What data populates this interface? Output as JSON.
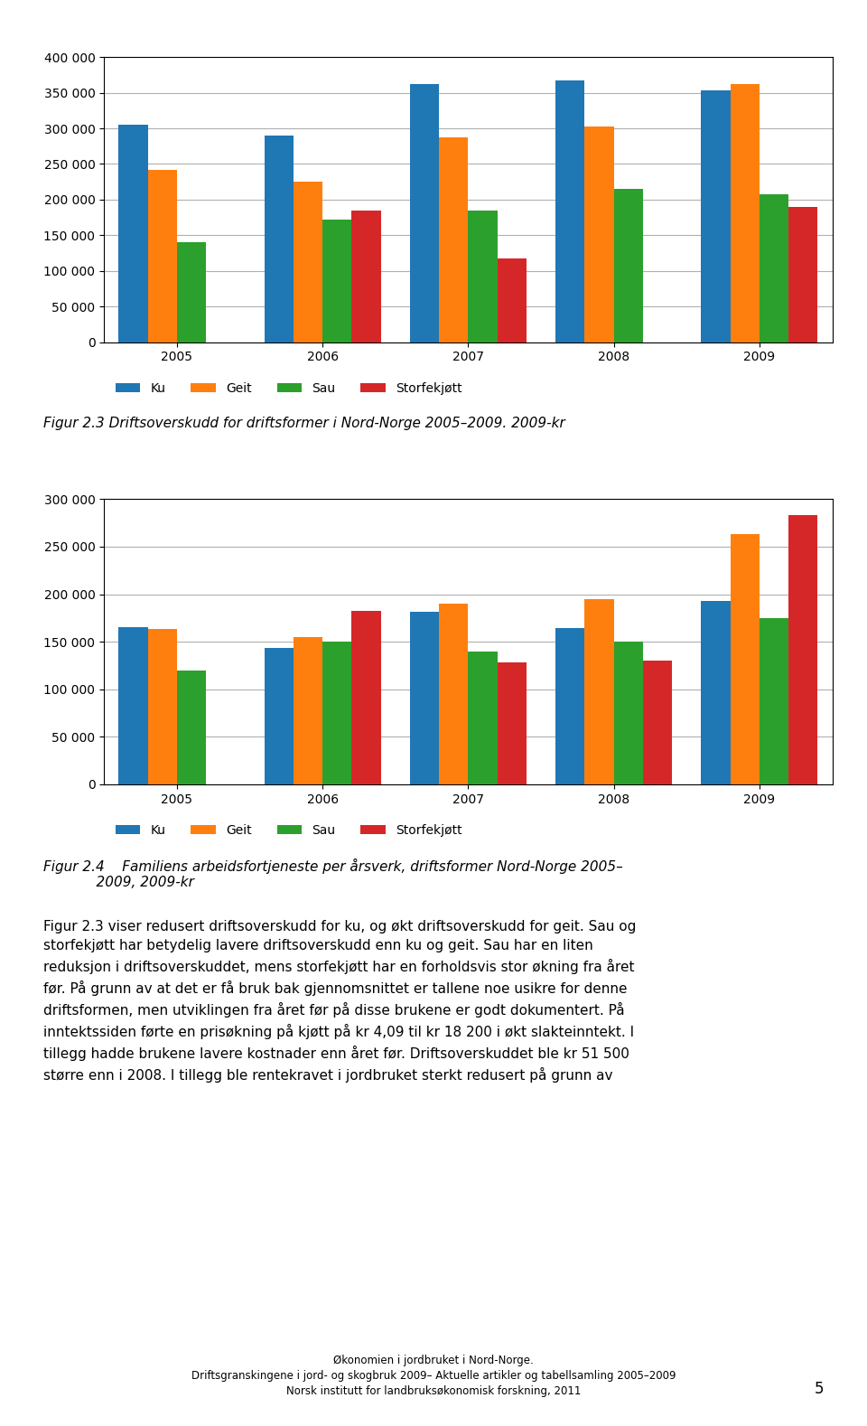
{
  "chart_data": [
    {
      "type": "bar",
      "title": "Figur 2.3 Driftsoverskudd for driftsformer i Nord-Norge 2005–2009. 2009-kr",
      "categories": [
        "2005",
        "2006",
        "2007",
        "2008",
        "2009"
      ],
      "series": [
        {
          "name": "Ku",
          "values": [
            305000,
            290000,
            362000,
            367000,
            353000
          ]
        },
        {
          "name": "Geit",
          "values": [
            242000,
            225000,
            287000,
            302000,
            362000
          ]
        },
        {
          "name": "Sau",
          "values": [
            140000,
            172000,
            185000,
            215000,
            207000
          ]
        },
        {
          "name": "Storfekjøtt",
          "values": [
            0,
            185000,
            118000,
            0,
            190000
          ]
        }
      ],
      "ylim": [
        0,
        400000
      ],
      "yticks": [
        0,
        {
          "value": 50000,
          "label": "50 000"
        },
        {
          "value": 100000,
          "label": "100 000"
        },
        {
          "value": 150000,
          "label": "150 000"
        },
        {
          "value": 200000,
          "label": "200 000"
        },
        {
          "value": 250000,
          "label": "250 000"
        },
        {
          "value": 300000,
          "label": "300 000"
        },
        {
          "value": 350000,
          "label": "350 000"
        },
        {
          "value": 400000,
          "label": "400 000"
        }
      ],
      "grid": true,
      "legend": "upper left"
    },
    {
      "type": "bar",
      "title": "Figur 2.4    Familiens arbeidsfortjeneste per årsverk, driftsformer Nord-Norge 2005–\n            2009, 2009-kr",
      "categories": [
        "2005",
        "2006",
        "2007",
        "2008",
        "2009"
      ],
      "series": [
        {
          "name": "Ku",
          "values": [
            165000,
            143000,
            181000,
            164000,
            193000
          ]
        },
        {
          "name": "Geit",
          "values": [
            163000,
            155000,
            190000,
            195000,
            263000
          ]
        },
        {
          "name": "Sau",
          "values": [
            120000,
            150000,
            140000,
            150000,
            175000
          ]
        },
        {
          "name": "Storfekjøtt",
          "values": [
            0,
            182000,
            128000,
            130000,
            283000
          ]
        }
      ],
      "ylim": [
        0,
        300000
      ],
      "yticks": [
        0,
        {
          "value": 50000,
          "label": "50 000"
        },
        {
          "value": 100000,
          "label": "100 000"
        },
        {
          "value": 150000,
          "label": "150 000"
        },
        {
          "value": 200000,
          "label": "200 000"
        },
        {
          "value": 250000,
          "label": "250 000"
        },
        {
          "value": 300000,
          "label": "300 000"
        }
      ],
      "grid": true,
      "legend": "upper left"
    }
  ],
  "annotations": [
    "Figur 2.3 viser redusert driftsoverskudd for ku, og økt driftsoverskudd for geit. Sau og\nstorfekjøtt har betydelig lavere driftsoverskudd enn ku og geit. Sau har en liten\nreduksjon i driftsoverskuddet, mens storfekjøtt har en forholdsvis stor økning fra året\nfør. På grunn av at det er få bruk bak gjennomsnittet er tallene noe usikre for denne\ndriftsformen, men utviklingen fra året før på disse brukene er godt dokumentert. På\ninntektssiden førte en prisøkning på kjøtt på kr 4,09 til kr 18 200 i økt slakteinntekt. I\ntillegg hadde brukene lavere kostnader enn året før. Driftsoverskuddet ble kr 51 500\nstørre enn i 2008. I tillegg ble rentekravet i jordbruket sterkt redusert på grunn av",
    "Økonomien i jordbruket i Nord-Norge.\nDriftsgranskingene i jord- og skogbruk 2009– Aktuelle artikler og tabellsamling 2005–2009\nNorsk institutt for landbruksøkonomisk forskning, 2011",
    "5"
  ]
}
